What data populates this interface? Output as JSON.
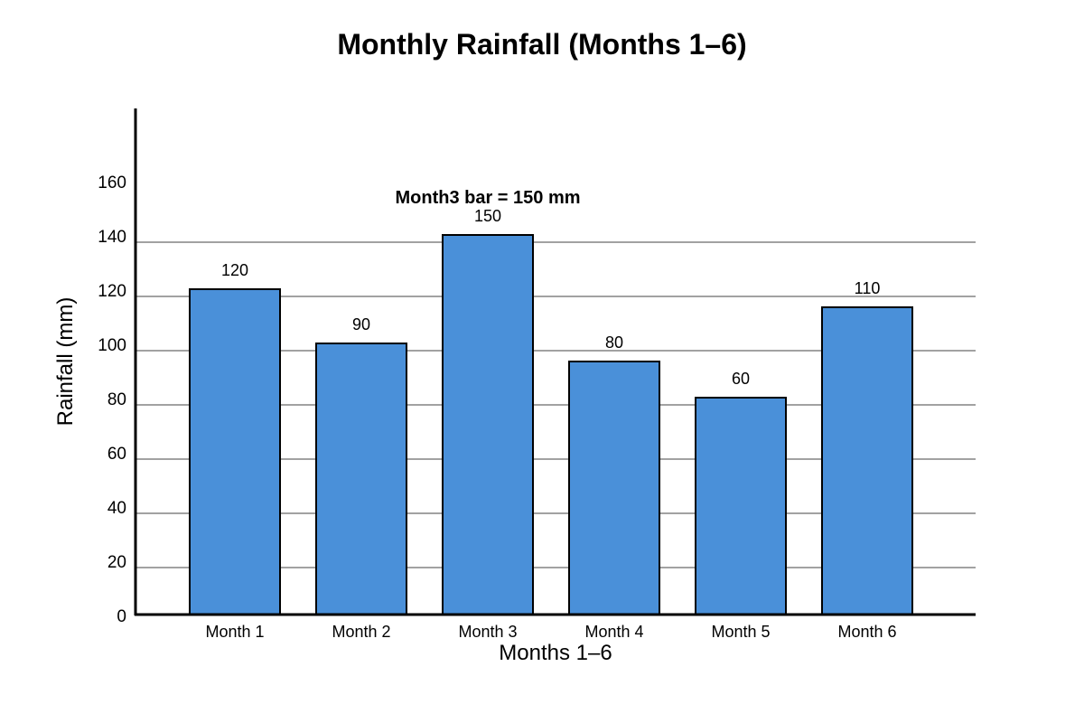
{
  "chart_data": {
    "type": "bar",
    "title": "Monthly Rainfall (Months 1–6)",
    "xlabel": "Months 1–6",
    "ylabel": "Rainfall (mm)",
    "categories": [
      "Month 1",
      "Month 2",
      "Month 3",
      "Month 4",
      "Month 5",
      "Month 6"
    ],
    "values": [
      120,
      90,
      150,
      80,
      60,
      110
    ],
    "data_labels": [
      "120",
      "90",
      "150",
      "80",
      "60",
      "110"
    ],
    "y_ticks": [
      0,
      20,
      40,
      60,
      80,
      100,
      120,
      140,
      160
    ],
    "ylim": [
      0,
      185
    ],
    "grid": true,
    "annotation": "Month3 bar = 150 mm",
    "bar_color": "#4a90d9"
  }
}
